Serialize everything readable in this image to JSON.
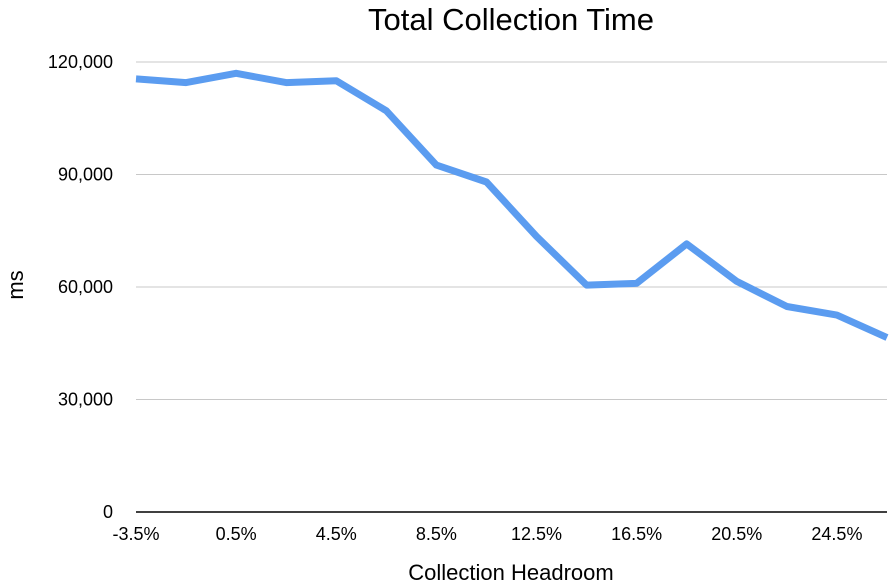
{
  "chart_data": {
    "type": "line",
    "title": "Total Collection Time",
    "xlabel": "Collection Headroom",
    "ylabel": "ms",
    "x": [
      "-3.5%",
      "-1.5%",
      "0.5%",
      "2.5%",
      "4.5%",
      "6.5%",
      "8.5%",
      "10.5%",
      "12.5%",
      "14.5%",
      "16.5%",
      "18.5%",
      "20.5%",
      "22.5%",
      "24.5%",
      "26.5%"
    ],
    "x_tick_labels": [
      "-3.5%",
      "0.5%",
      "4.5%",
      "8.5%",
      "12.5%",
      "16.5%",
      "20.5%",
      "24.5%"
    ],
    "y_tick_labels": [
      "0",
      "30,000",
      "60,000",
      "90,000",
      "120,000"
    ],
    "ylim": [
      0,
      120000
    ],
    "grid": true,
    "legend": "none",
    "series": [
      {
        "values": [
          115500,
          114500,
          117000,
          114500,
          115000,
          107000,
          92500,
          88000,
          73500,
          60500,
          61000,
          71500,
          61500,
          54800,
          52500,
          46500
        ],
        "color": "#5b9cf0"
      }
    ]
  }
}
